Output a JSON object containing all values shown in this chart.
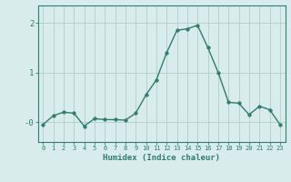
{
  "x": [
    0,
    1,
    2,
    3,
    4,
    5,
    6,
    7,
    8,
    9,
    10,
    11,
    12,
    13,
    14,
    15,
    16,
    17,
    18,
    19,
    20,
    21,
    22,
    23
  ],
  "y": [
    -0.05,
    0.13,
    0.2,
    0.18,
    -0.08,
    0.07,
    0.05,
    0.05,
    0.04,
    0.18,
    0.55,
    0.85,
    1.4,
    1.85,
    1.88,
    1.95,
    1.5,
    1.0,
    0.4,
    0.38,
    0.15,
    0.32,
    0.25,
    -0.05
  ],
  "line_color": "#2e7d6e",
  "marker_size": 2.5,
  "bg_color": "#d8edeb",
  "grid_color": "#b0ceca",
  "tick_color": "#2e7d6e",
  "xlabel": "Humidex (Indice chaleur)",
  "xlabel_fontsize": 6.5,
  "xtick_labels": [
    "0",
    "1",
    "2",
    "3",
    "4",
    "5",
    "6",
    "7",
    "8",
    "9",
    "10",
    "11",
    "12",
    "13",
    "14",
    "15",
    "16",
    "17",
    "18",
    "19",
    "20",
    "21",
    "22",
    "23"
  ],
  "ytick_labels": [
    "-0",
    "1",
    "2"
  ],
  "ytick_vals": [
    0,
    1,
    2
  ],
  "ylim": [
    -0.4,
    2.35
  ],
  "xlim": [
    -0.5,
    23.5
  ]
}
